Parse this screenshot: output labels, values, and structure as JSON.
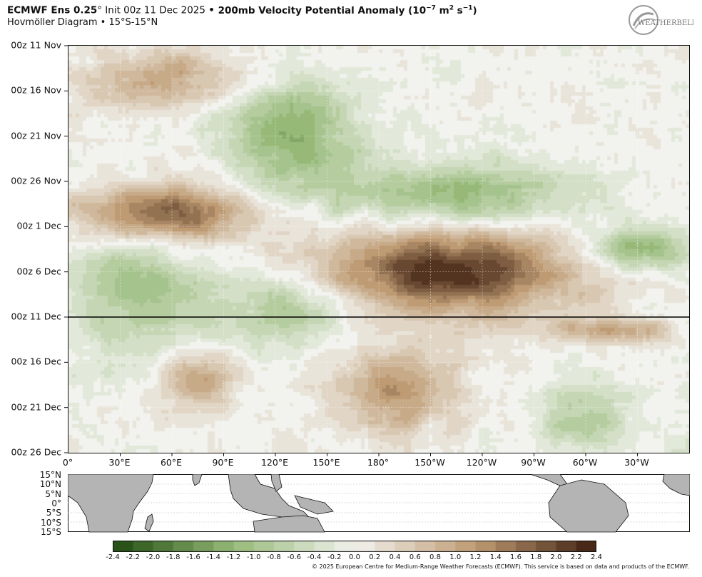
{
  "header": {
    "title_model": "ECMWF Ens 0.25",
    "title_deg": "°",
    "title_init": " Init 00z 11 Dec 2025 ",
    "title_bullet": "•",
    "title_field": " 200mb Velocity Potential Anomaly (10",
    "title_exp": "−7",
    "title_units_a": " m",
    "title_units_exp": "2",
    "title_units_b": " s",
    "title_units_exp2": "−1",
    "title_units_close": ")",
    "subtitle": "Hovmöller Diagram • 15°S-15°N",
    "logo_text": "WEATHERBELL"
  },
  "chart_data": {
    "type": "heatmap",
    "title": "200mb Velocity Potential Anomaly",
    "y_axis_labels": [
      "00z 11 Nov",
      "00z 16 Nov",
      "00z 21 Nov",
      "00z 26 Nov",
      "00z 1 Dec",
      "00z 6 Dec",
      "00z 11 Dec",
      "00z 16 Dec",
      "00z 21 Dec",
      "00z 26 Dec"
    ],
    "x_axis_labels": [
      "0°",
      "30°E",
      "60°E",
      "90°E",
      "120°E",
      "150°E",
      "180°",
      "150°W",
      "120°W",
      "90°W",
      "60°W",
      "30°W"
    ],
    "lat_labels": [
      "15°N",
      "10°N",
      "5°N",
      "0°",
      "5°S",
      "10°S",
      "15°S"
    ],
    "init_line": "00z 11 Dec",
    "colorbar": {
      "ticks": [
        "-2.4",
        "-2.2",
        "-2.0",
        "-1.8",
        "-1.6",
        "-1.4",
        "-1.2",
        "-1.0",
        "-0.8",
        "-0.6",
        "-0.4",
        "-0.2",
        "0.0",
        "0.2",
        "0.4",
        "0.6",
        "0.8",
        "1.0",
        "1.2",
        "1.4",
        "1.6",
        "1.8",
        "2.0",
        "2.2",
        "2.4"
      ],
      "range": [
        -2.4,
        2.4
      ],
      "negative_color": "#1f4a0f",
      "neutral_color": "#f2f2ee",
      "positive_color": "#3d1f10"
    },
    "anomaly_features": [
      {
        "sign": "positive",
        "from_date": "00z 26 Nov",
        "to_date": "00z 3 Dec",
        "from_lon": "0°",
        "to_lon": "110°E",
        "peak": 1.9
      },
      {
        "sign": "positive",
        "from_date": "00z 1 Dec",
        "to_date": "00z 11 Dec",
        "from_lon": "140°E",
        "to_lon": "60°W",
        "peak": 2.2
      },
      {
        "sign": "positive",
        "from_date": "00z 11 Nov",
        "to_date": "00z 18 Nov",
        "from_lon": "0°",
        "to_lon": "110°E",
        "peak": 1.0
      },
      {
        "sign": "positive",
        "from_date": "00z 14 Dec",
        "to_date": "00z 24 Dec",
        "from_lon": "150°E",
        "to_lon": "130°W",
        "peak": 1.2
      },
      {
        "sign": "positive",
        "from_date": "00z 14 Dec",
        "to_date": "00z 22 Dec",
        "from_lon": "50°E",
        "to_lon": "100°E",
        "peak": 1.1
      },
      {
        "sign": "positive",
        "from_date": "00z 11 Dec",
        "to_date": "00z 14 Dec",
        "from_lon": "90°W",
        "to_lon": "0°",
        "peak": 1.0
      },
      {
        "sign": "negative",
        "from_date": "00z 14 Nov",
        "to_date": "00z 28 Nov",
        "from_lon": "90°E",
        "to_lon": "170°E",
        "peak": -1.3
      },
      {
        "sign": "negative",
        "from_date": "00z 24 Nov",
        "to_date": "00z 1 Dec",
        "from_lon": "150°E",
        "to_lon": "60°W",
        "peak": -1.2
      },
      {
        "sign": "negative",
        "from_date": "00z 1 Dec",
        "to_date": "00z 6 Dec",
        "from_lon": "60°W",
        "to_lon": "0°",
        "peak": -1.3
      },
      {
        "sign": "negative",
        "from_date": "00z 30 Nov",
        "to_date": "00z 16 Dec",
        "from_lon": "0°",
        "to_lon": "80°E",
        "peak": -1.0
      },
      {
        "sign": "negative",
        "from_date": "00z 6 Dec",
        "to_date": "00z 14 Dec",
        "from_lon": "80°E",
        "to_lon": "170°E",
        "peak": -1.0
      },
      {
        "sign": "negative",
        "from_date": "00z 18 Dec",
        "to_date": "00z 26 Dec",
        "from_lon": "90°W",
        "to_lon": "30°W",
        "peak": -0.8
      }
    ]
  },
  "colors": {
    "land": "#b4b4b4",
    "init_line": "#000000"
  },
  "footer": {
    "copyright": "© 2025 European Centre for Medium-Range Weather Forecasts (ECMWF). This service is based on data and products of the ECMWF."
  }
}
